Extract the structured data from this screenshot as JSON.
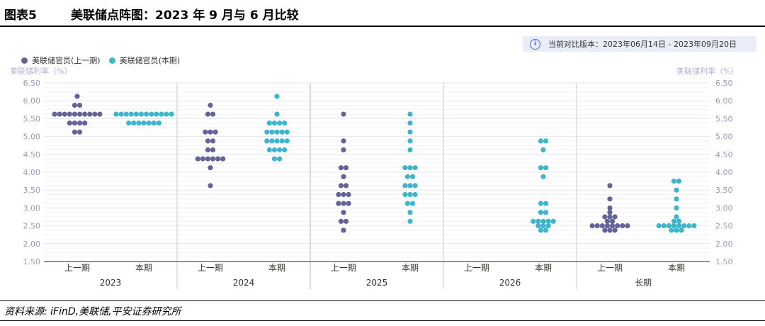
{
  "header": {
    "figure_label": "图表5",
    "title": "美联储点阵图：2023 年 9 月与 6 月比较"
  },
  "info": {
    "icon": "info-icon",
    "text": "当前对比版本：2023年06月14日 - 2023年09月20日"
  },
  "source": "资料来源: iFinD,美联储,平安证券研究所",
  "chart_data": {
    "type": "scatter",
    "subtype": "dot-plot",
    "title": "",
    "ylabel_left": "美联储利率（%）",
    "ylabel_right": "美联储利率（%）",
    "ylim": [
      1.5,
      6.5
    ],
    "yticks": [
      "1.50",
      "2.00",
      "2.50",
      "3.00",
      "3.50",
      "4.00",
      "4.50",
      "5.00",
      "5.50",
      "6.00",
      "6.50"
    ],
    "grid": true,
    "legend_position": "top-left",
    "colors": {
      "prev": "#636399",
      "curr": "#3db5cc",
      "grid": "#e6e6ee",
      "axis": "#8a8ac0",
      "divider": "#c8c8da",
      "tick_text": "#9a9ab5"
    },
    "series": [
      {
        "key": "prev",
        "name": "美联储官员(上一期)"
      },
      {
        "key": "curr",
        "name": "美联储官员(本期)"
      }
    ],
    "groups": [
      {
        "label": "2023",
        "subgroups": [
          {
            "label": "上一期",
            "series": "prev",
            "dots": [
              {
                "y": 6.125,
                "n": 1
              },
              {
                "y": 5.875,
                "n": 2
              },
              {
                "y": 5.625,
                "n": 10
              },
              {
                "y": 5.375,
                "n": 4
              },
              {
                "y": 5.125,
                "n": 2
              }
            ]
          },
          {
            "label": "本期",
            "series": "curr",
            "dots": [
              {
                "y": 5.625,
                "n": 12
              },
              {
                "y": 5.375,
                "n": 7
              }
            ]
          }
        ]
      },
      {
        "label": "2024",
        "subgroups": [
          {
            "label": "上一期",
            "series": "prev",
            "dots": [
              {
                "y": 5.875,
                "n": 1
              },
              {
                "y": 5.625,
                "n": 2
              },
              {
                "y": 5.125,
                "n": 3
              },
              {
                "y": 4.875,
                "n": 2
              },
              {
                "y": 4.625,
                "n": 2
              },
              {
                "y": 4.375,
                "n": 6
              },
              {
                "y": 4.125,
                "n": 1
              },
              {
                "y": 3.625,
                "n": 1
              }
            ]
          },
          {
            "label": "本期",
            "series": "curr",
            "dots": [
              {
                "y": 6.125,
                "n": 1
              },
              {
                "y": 5.625,
                "n": 1
              },
              {
                "y": 5.375,
                "n": 4
              },
              {
                "y": 5.125,
                "n": 5
              },
              {
                "y": 4.875,
                "n": 5
              },
              {
                "y": 4.625,
                "n": 4
              },
              {
                "y": 4.375,
                "n": 2
              }
            ]
          }
        ]
      },
      {
        "label": "2025",
        "subgroups": [
          {
            "label": "上一期",
            "series": "prev",
            "dots": [
              {
                "y": 5.625,
                "n": 1
              },
              {
                "y": 4.875,
                "n": 1
              },
              {
                "y": 4.625,
                "n": 1
              },
              {
                "y": 4.125,
                "n": 2
              },
              {
                "y": 3.875,
                "n": 1
              },
              {
                "y": 3.625,
                "n": 2
              },
              {
                "y": 3.375,
                "n": 3
              },
              {
                "y": 3.125,
                "n": 3
              },
              {
                "y": 2.875,
                "n": 1
              },
              {
                "y": 2.625,
                "n": 2
              },
              {
                "y": 2.375,
                "n": 1
              }
            ]
          },
          {
            "label": "本期",
            "series": "curr",
            "dots": [
              {
                "y": 5.625,
                "n": 1
              },
              {
                "y": 5.375,
                "n": 1
              },
              {
                "y": 5.125,
                "n": 1
              },
              {
                "y": 4.875,
                "n": 1
              },
              {
                "y": 4.625,
                "n": 1
              },
              {
                "y": 4.125,
                "n": 3
              },
              {
                "y": 3.875,
                "n": 2
              },
              {
                "y": 3.625,
                "n": 3
              },
              {
                "y": 3.375,
                "n": 3
              },
              {
                "y": 3.125,
                "n": 2
              },
              {
                "y": 2.875,
                "n": 1
              },
              {
                "y": 2.625,
                "n": 1
              }
            ]
          }
        ]
      },
      {
        "label": "2026",
        "subgroups": [
          {
            "label": "上一期",
            "series": "prev",
            "dots": []
          },
          {
            "label": "本期",
            "series": "curr",
            "dots": [
              {
                "y": 4.875,
                "n": 2
              },
              {
                "y": 4.625,
                "n": 1
              },
              {
                "y": 4.125,
                "n": 2
              },
              {
                "y": 3.875,
                "n": 1
              },
              {
                "y": 3.125,
                "n": 2
              },
              {
                "y": 2.875,
                "n": 2
              },
              {
                "y": 2.625,
                "n": 5
              },
              {
                "y": 2.5,
                "n": 3
              },
              {
                "y": 2.375,
                "n": 2
              }
            ]
          }
        ]
      },
      {
        "label": "长期",
        "subgroups": [
          {
            "label": "上一期",
            "series": "prev",
            "dots": [
              {
                "y": 3.625,
                "n": 1
              },
              {
                "y": 3.25,
                "n": 1
              },
              {
                "y": 3.0,
                "n": 1
              },
              {
                "y": 2.875,
                "n": 1
              },
              {
                "y": 2.75,
                "n": 3
              },
              {
                "y": 2.625,
                "n": 2
              },
              {
                "y": 2.5,
                "n": 8
              },
              {
                "y": 2.375,
                "n": 3
              }
            ]
          },
          {
            "label": "本期",
            "series": "curr",
            "dots": [
              {
                "y": 3.75,
                "n": 2
              },
              {
                "y": 3.5,
                "n": 1
              },
              {
                "y": 3.25,
                "n": 1
              },
              {
                "y": 3.0,
                "n": 1
              },
              {
                "y": 2.75,
                "n": 1
              },
              {
                "y": 2.625,
                "n": 2
              },
              {
                "y": 2.5,
                "n": 8
              },
              {
                "y": 2.375,
                "n": 3
              }
            ]
          }
        ]
      }
    ]
  }
}
